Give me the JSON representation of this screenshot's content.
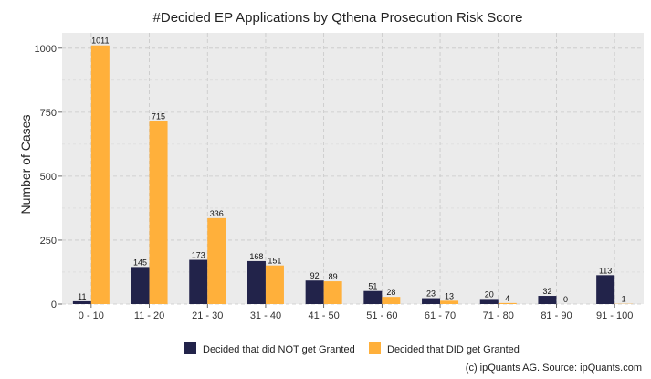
{
  "chart_data": {
    "type": "bar",
    "title": "#Decided EP Applications by Qthena Prosecution Risk Score",
    "xlabel": "",
    "ylabel": "Number of Cases",
    "categories": [
      "0 - 10",
      "11 - 20",
      "21 - 30",
      "31 - 40",
      "41 - 50",
      "51 - 60",
      "61 - 70",
      "71 - 80",
      "81 - 90",
      "91 - 100"
    ],
    "series": [
      {
        "name": "Decided that did NOT get Granted",
        "color": "#22234a",
        "values": [
          11,
          145,
          173,
          168,
          92,
          51,
          23,
          20,
          32,
          113
        ]
      },
      {
        "name": "Decided that DID get Granted",
        "color": "#ffb03b",
        "values": [
          1011,
          715,
          336,
          151,
          89,
          28,
          13,
          4,
          0,
          1
        ]
      }
    ],
    "ylim": [
      0,
      1060
    ],
    "yticks": [
      0,
      250,
      500,
      750,
      1000
    ],
    "grid": true,
    "legend_position": "bottom",
    "caption": "(c) ipQuants AG. Source: ipQuants.com",
    "panel_background": "#ebebeb"
  }
}
